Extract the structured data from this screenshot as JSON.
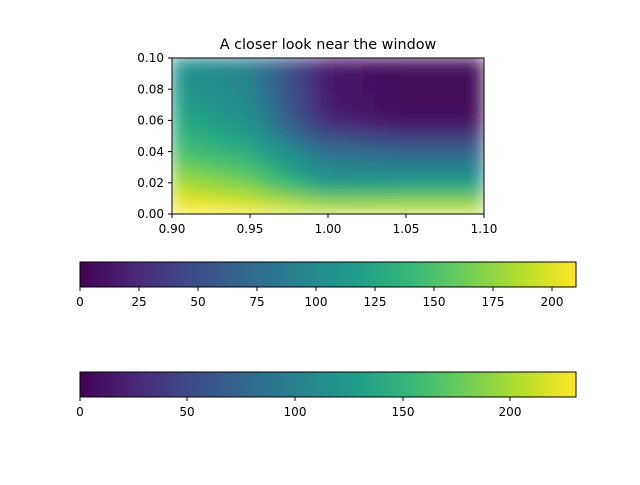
{
  "chart_data": [
    {
      "type": "heatmap",
      "title": "A closer look near the window",
      "xlabel": "",
      "ylabel": "",
      "xlim": [
        0.9,
        1.1
      ],
      "ylim": [
        0.0,
        0.1
      ],
      "xticks": [
        "0.90",
        "0.95",
        "1.00",
        "1.05",
        "1.10"
      ],
      "yticks": [
        "0.00",
        "0.02",
        "0.04",
        "0.06",
        "0.08",
        "0.10"
      ],
      "colormap": "viridis",
      "grid": false,
      "field_description": "High values (about 210-230) near y=0 across the full width; values decrease upward. For x below 1.00 a medium-value band (~90-140) spans most of the height, with a diagonal boundary near x≈0.95-1.00; for x above 1.00 values drop to near 0 above y≈0.05.",
      "grid_values": {
        "x": [
          0.9,
          0.95,
          1.0,
          1.05,
          1.1
        ],
        "y": [
          0.0,
          0.02,
          0.04,
          0.06,
          0.08,
          0.1
        ],
        "z": [
          [
            220,
            215,
            210,
            210,
            210
          ],
          [
            185,
            165,
            110,
            115,
            115
          ],
          [
            150,
            130,
            80,
            70,
            70
          ],
          [
            130,
            105,
            20,
            5,
            5
          ],
          [
            115,
            95,
            15,
            5,
            5
          ],
          [
            105,
            90,
            15,
            5,
            5
          ]
        ]
      }
    },
    {
      "type": "colorbar",
      "colormap": "viridis",
      "range": [
        0,
        210
      ],
      "ticks": [
        "0",
        "25",
        "50",
        "75",
        "100",
        "125",
        "150",
        "175",
        "200"
      ]
    },
    {
      "type": "colorbar",
      "colormap": "viridis",
      "range": [
        0,
        231
      ],
      "ticks": [
        "0",
        "50",
        "100",
        "150",
        "200"
      ]
    }
  ],
  "colors": {
    "viridis": [
      "#440154",
      "#482878",
      "#3e4a89",
      "#31688e",
      "#26828e",
      "#1f9e89",
      "#35b779",
      "#6ece58",
      "#b5de2b",
      "#fde725"
    ]
  }
}
